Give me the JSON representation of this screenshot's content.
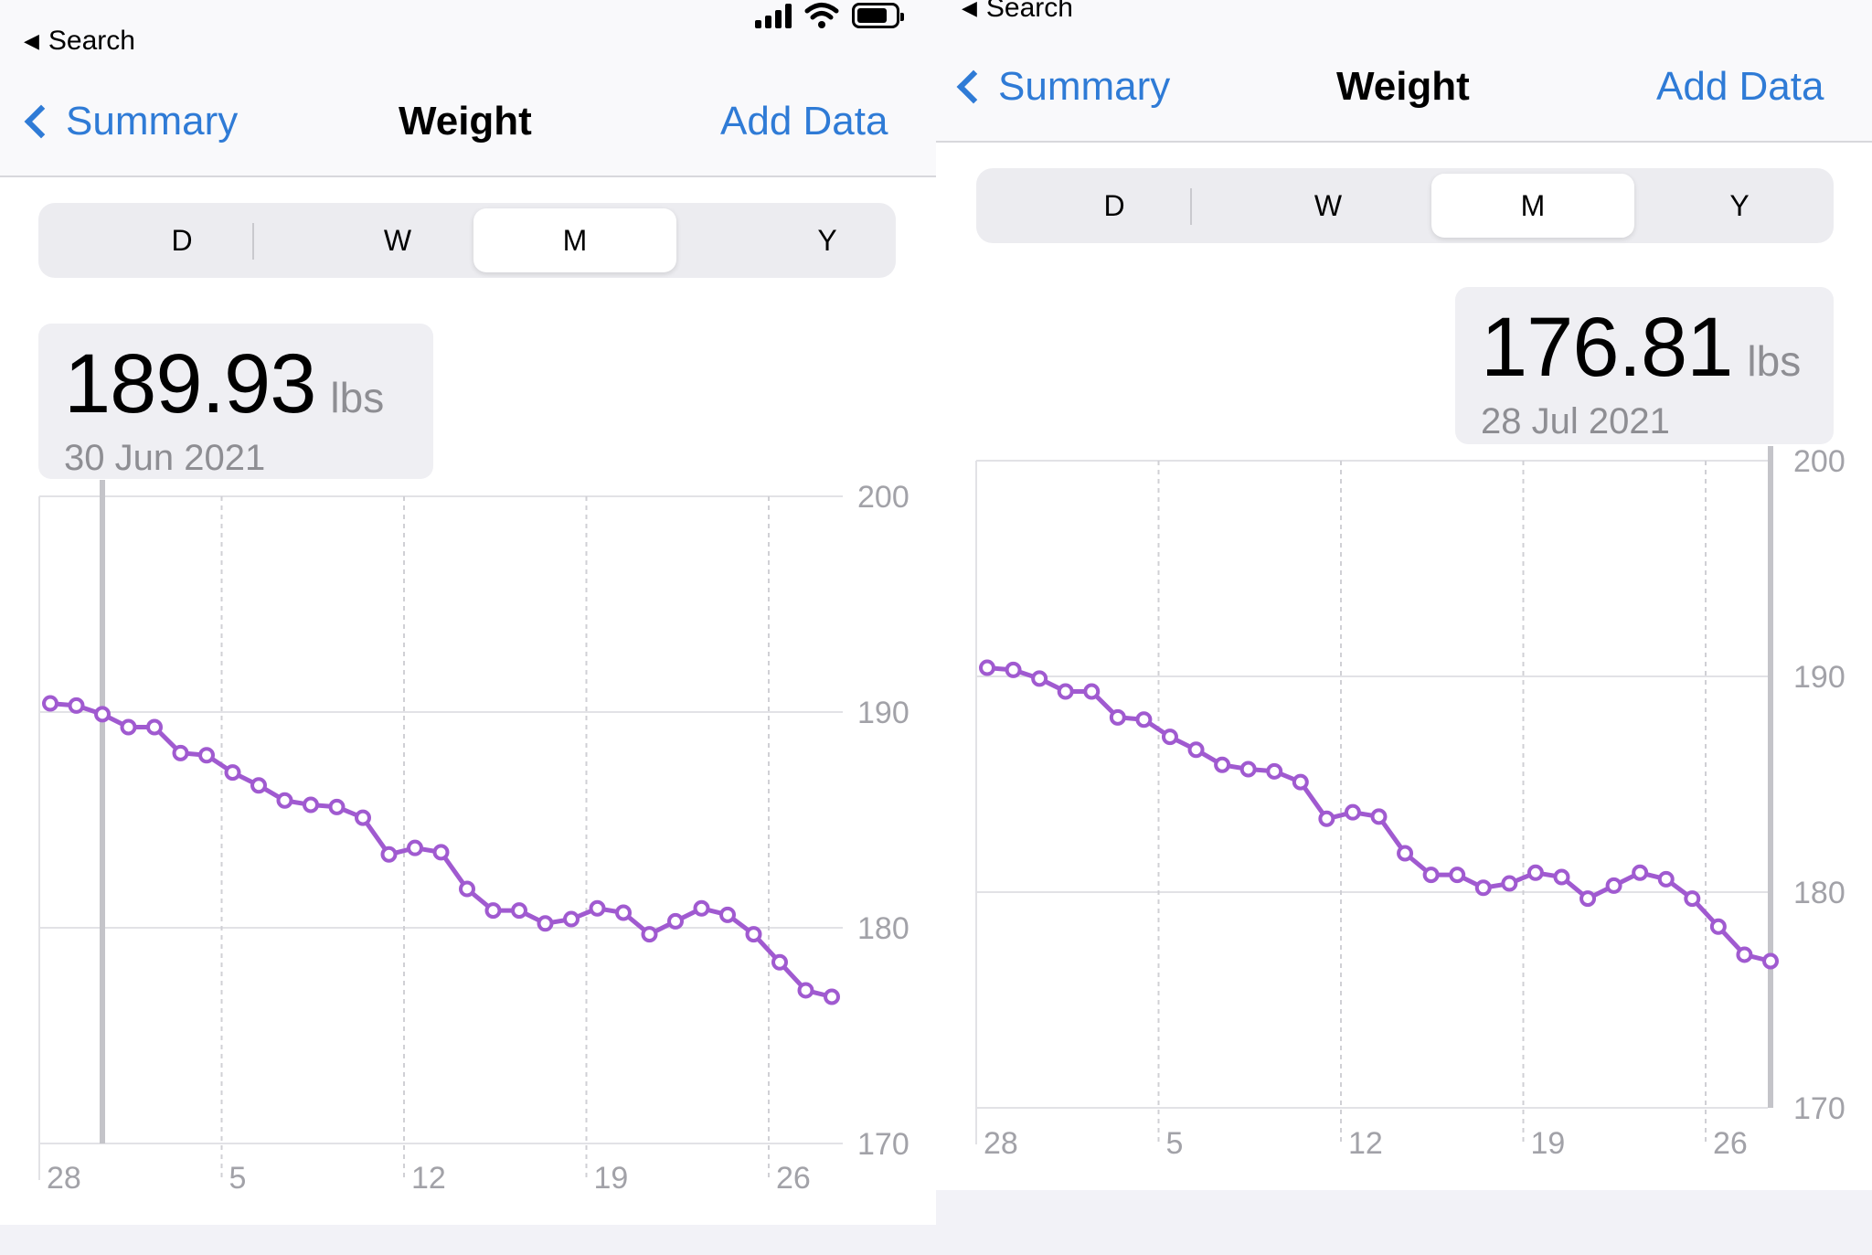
{
  "colors": {
    "accent": "#2f7bd6",
    "series": "#a05ad0",
    "grid": "#e2e2e6",
    "label": "#a2a2a8"
  },
  "panels": [
    {
      "status": {
        "back_label": "Search"
      },
      "nav": {
        "back_label": "Summary",
        "title": "Weight",
        "action_label": "Add Data"
      },
      "segments": [
        "D",
        "W",
        "M",
        "Y"
      ],
      "selected_segment": "M",
      "readout": {
        "value": "189.93",
        "unit": "lbs",
        "date": "30 Jun 2021"
      }
    },
    {
      "status": {
        "back_label": "Search"
      },
      "nav": {
        "back_label": "Summary",
        "title": "Weight",
        "action_label": "Add Data"
      },
      "segments": [
        "D",
        "W",
        "M",
        "Y"
      ],
      "selected_segment": "M",
      "readout": {
        "value": "176.81",
        "unit": "lbs",
        "date": "28 Jul 2021"
      }
    }
  ],
  "chart_data": [
    {
      "type": "line",
      "ylim": [
        170,
        200
      ],
      "y_ticks": [
        "200",
        "190",
        "180",
        "170"
      ],
      "x_ticks": [
        "28",
        "5",
        "12",
        "19",
        "26"
      ],
      "highlight_day": 2,
      "values": [
        190.4,
        190.3,
        189.9,
        189.3,
        189.3,
        188.1,
        188.0,
        187.2,
        186.6,
        185.9,
        185.7,
        185.6,
        185.1,
        183.4,
        183.7,
        183.5,
        181.8,
        180.8,
        180.8,
        180.2,
        180.4,
        180.9,
        180.7,
        179.7,
        180.3,
        180.9,
        180.6,
        179.7,
        178.4,
        177.1,
        176.8
      ]
    },
    {
      "type": "line",
      "ylim": [
        170,
        200
      ],
      "y_ticks": [
        "200",
        "190",
        "180",
        "170"
      ],
      "x_ticks": [
        "28",
        "5",
        "12",
        "19",
        "26"
      ],
      "highlight_day": 30,
      "values": [
        190.4,
        190.3,
        189.9,
        189.3,
        189.3,
        188.1,
        188.0,
        187.2,
        186.6,
        185.9,
        185.7,
        185.6,
        185.1,
        183.4,
        183.7,
        183.5,
        181.8,
        180.8,
        180.8,
        180.2,
        180.4,
        180.9,
        180.7,
        179.7,
        180.3,
        180.9,
        180.6,
        179.7,
        178.4,
        177.1,
        176.8
      ]
    }
  ]
}
